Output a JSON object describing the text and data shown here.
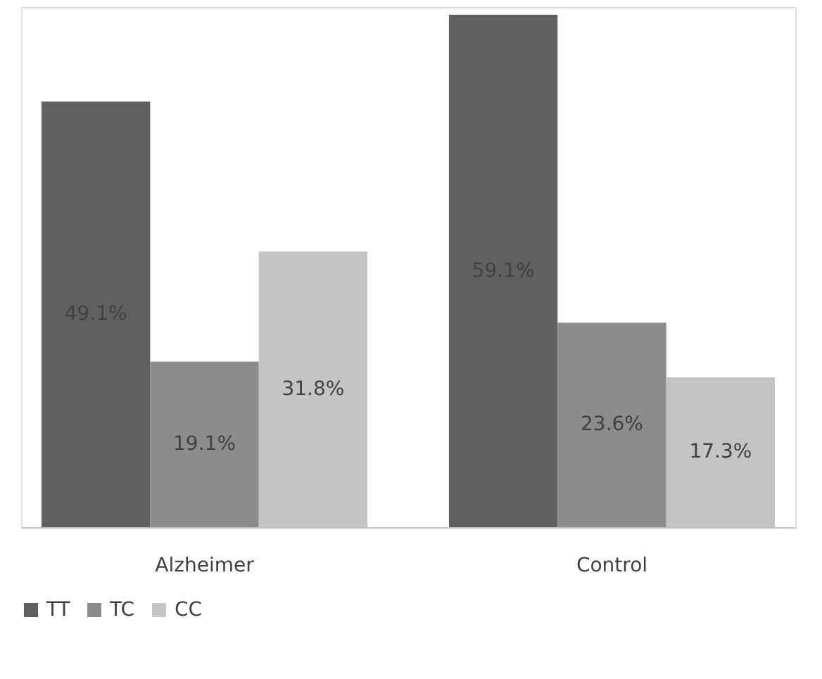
{
  "chart_data": {
    "type": "bar",
    "categories": [
      "Alzheimer",
      "Control"
    ],
    "series": [
      {
        "name": "TT",
        "color": "#606060",
        "values": [
          49.1,
          59.1
        ],
        "value_labels": [
          "49.1%",
          "59.1%"
        ]
      },
      {
        "name": "TC",
        "color": "#8c8c8c",
        "values": [
          19.1,
          23.6
        ],
        "value_labels": [
          "19.1%",
          "23.6%"
        ]
      },
      {
        "name": "CC",
        "color": "#c4c4c4",
        "values": [
          31.8,
          17.3
        ],
        "value_labels": [
          "31.8%",
          "17.3%"
        ]
      }
    ],
    "legend": "bottom",
    "grid": false
  }
}
